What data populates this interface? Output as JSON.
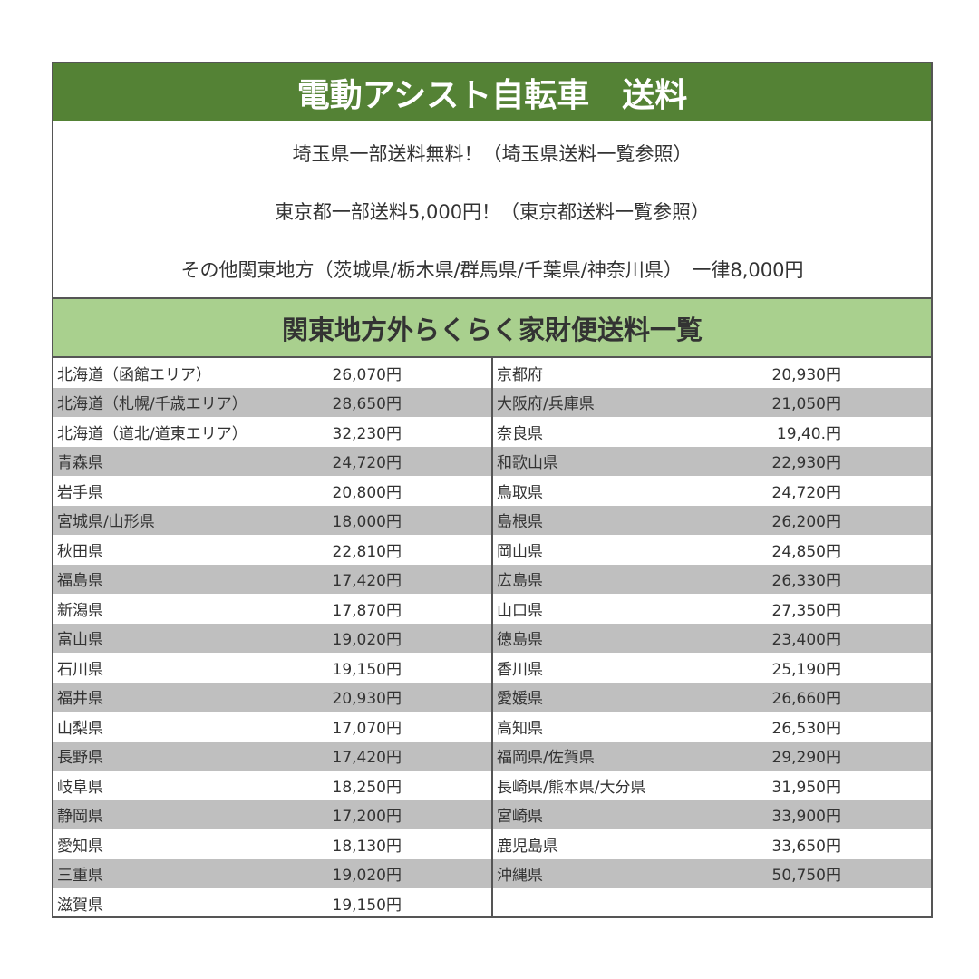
{
  "title": "電動アシスト自転車　送料",
  "notes": [
    "埼玉県一部送料無料！（埼玉県送料一覧参照）",
    "東京都一部送料5,000円！（東京都送料一覧参照）",
    "その他関東地方（茨城県/栃木県/群馬県/千葉県/神奈川県）　一律8,000円"
  ],
  "subtitle": "関東地方外らくらく家財便送料一覧",
  "left": [
    {
      "name": "北海道（函館エリア）",
      "price": "26,070円"
    },
    {
      "name": "北海道（札幌/千歳エリア）",
      "price": "28,650円"
    },
    {
      "name": "北海道（道北/道東エリア）",
      "price": "32,230円"
    },
    {
      "name": "青森県",
      "price": "24,720円"
    },
    {
      "name": "岩手県",
      "price": "20,800円"
    },
    {
      "name": "宮城県/山形県",
      "price": "18,000円"
    },
    {
      "name": "秋田県",
      "price": "22,810円"
    },
    {
      "name": "福島県",
      "price": "17,420円"
    },
    {
      "name": "新潟県",
      "price": "17,870円"
    },
    {
      "name": "富山県",
      "price": "19,020円"
    },
    {
      "name": "石川県",
      "price": "19,150円"
    },
    {
      "name": "福井県",
      "price": "20,930円"
    },
    {
      "name": "山梨県",
      "price": "17,070円"
    },
    {
      "name": "長野県",
      "price": "17,420円"
    },
    {
      "name": "岐阜県",
      "price": "18,250円"
    },
    {
      "name": "静岡県",
      "price": "17,200円"
    },
    {
      "name": "愛知県",
      "price": "18,130円"
    },
    {
      "name": "三重県",
      "price": "19,020円"
    },
    {
      "name": "滋賀県",
      "price": "19,150円"
    }
  ],
  "right": [
    {
      "name": "京都府",
      "price": "20,930円"
    },
    {
      "name": "大阪府/兵庫県",
      "price": "21,050円"
    },
    {
      "name": "奈良県",
      "price": "19,40.円"
    },
    {
      "name": "和歌山県",
      "price": "22,930円"
    },
    {
      "name": "鳥取県",
      "price": "24,720円"
    },
    {
      "name": "島根県",
      "price": "26,200円"
    },
    {
      "name": "岡山県",
      "price": "24,850円"
    },
    {
      "name": "広島県",
      "price": "26,330円"
    },
    {
      "name": "山口県",
      "price": "27,350円"
    },
    {
      "name": "徳島県",
      "price": "23,400円"
    },
    {
      "name": "香川県",
      "price": "25,190円"
    },
    {
      "name": "愛媛県",
      "price": "26,660円"
    },
    {
      "name": "高知県",
      "price": "26,530円"
    },
    {
      "name": "福岡県/佐賀県",
      "price": "29,290円"
    },
    {
      "name": "長崎県/熊本県/大分県",
      "price": "31,950円"
    },
    {
      "name": "宮崎県",
      "price": "33,900円"
    },
    {
      "name": "鹿児島県",
      "price": "33,650円"
    },
    {
      "name": "沖縄県",
      "price": "50,750円"
    }
  ],
  "colors": {
    "title_bg": "#548235",
    "subtitle_bg": "#a9d08e",
    "stripe": "#bfbfbf"
  }
}
